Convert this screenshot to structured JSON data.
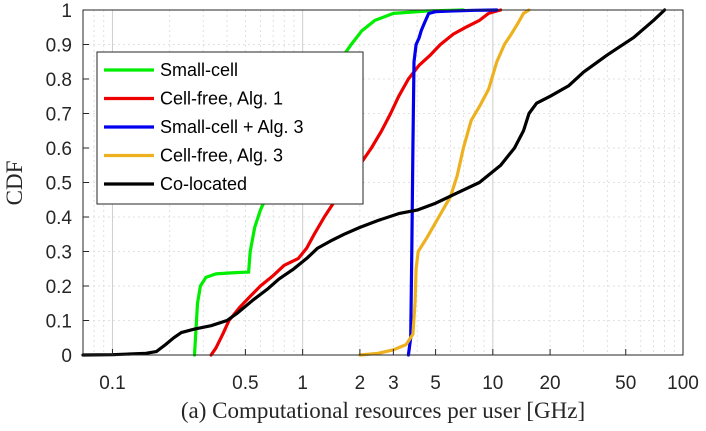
{
  "chart_data": {
    "type": "line",
    "xscale": "log",
    "xlim": [
      0.07,
      100
    ],
    "ylim": [
      0,
      1
    ],
    "grid": true,
    "xlabel": "(a) Computational resources per user [GHz]",
    "ylabel": "CDF",
    "xticks": [
      {
        "value": 0.1,
        "label": "0.1"
      },
      {
        "value": 0.5,
        "label": "0.5"
      },
      {
        "value": 1,
        "label": "1"
      },
      {
        "value": 2,
        "label": "2"
      },
      {
        "value": 3,
        "label": "3"
      },
      {
        "value": 5,
        "label": "5"
      },
      {
        "value": 10,
        "label": "10"
      },
      {
        "value": 20,
        "label": "20"
      },
      {
        "value": 50,
        "label": "50"
      },
      {
        "value": 100,
        "label": "100"
      }
    ],
    "yticks": [
      {
        "value": 0,
        "label": "0"
      },
      {
        "value": 0.1,
        "label": "0.1"
      },
      {
        "value": 0.2,
        "label": "0.2"
      },
      {
        "value": 0.3,
        "label": "0.3"
      },
      {
        "value": 0.4,
        "label": "0.4"
      },
      {
        "value": 0.5,
        "label": "0.5"
      },
      {
        "value": 0.6,
        "label": "0.6"
      },
      {
        "value": 0.7,
        "label": "0.7"
      },
      {
        "value": 0.8,
        "label": "0.8"
      },
      {
        "value": 0.9,
        "label": "0.9"
      },
      {
        "value": 1,
        "label": "1"
      }
    ],
    "legend_position": "left",
    "series": [
      {
        "name": "Small-cell",
        "color": "#00ee00",
        "points": [
          [
            0.27,
            0
          ],
          [
            0.28,
            0.15
          ],
          [
            0.29,
            0.2
          ],
          [
            0.31,
            0.225
          ],
          [
            0.35,
            0.235
          ],
          [
            0.42,
            0.238
          ],
          [
            0.5,
            0.24
          ],
          [
            0.52,
            0.24
          ],
          [
            0.53,
            0.3
          ],
          [
            0.56,
            0.37
          ],
          [
            0.6,
            0.42
          ],
          [
            0.66,
            0.47
          ],
          [
            0.75,
            0.52
          ],
          [
            0.85,
            0.57
          ],
          [
            0.95,
            0.62
          ],
          [
            1.05,
            0.66
          ],
          [
            1.15,
            0.7
          ],
          [
            1.25,
            0.74
          ],
          [
            1.35,
            0.78
          ],
          [
            1.45,
            0.82
          ],
          [
            1.6,
            0.86
          ],
          [
            1.8,
            0.9
          ],
          [
            2.05,
            0.94
          ],
          [
            2.4,
            0.97
          ],
          [
            3,
            0.99
          ],
          [
            4.5,
            0.997
          ],
          [
            7,
            1
          ]
        ]
      },
      {
        "name": "Cell-free, Alg. 1",
        "color": "#ee0000",
        "points": [
          [
            0.33,
            0
          ],
          [
            0.35,
            0.02
          ],
          [
            0.38,
            0.06
          ],
          [
            0.41,
            0.1
          ],
          [
            0.47,
            0.14
          ],
          [
            0.53,
            0.17
          ],
          [
            0.6,
            0.2
          ],
          [
            0.7,
            0.23
          ],
          [
            0.8,
            0.26
          ],
          [
            0.95,
            0.28
          ],
          [
            1.05,
            0.31
          ],
          [
            1.15,
            0.35
          ],
          [
            1.3,
            0.4
          ],
          [
            1.45,
            0.44
          ],
          [
            1.65,
            0.48
          ],
          [
            1.85,
            0.52
          ],
          [
            2.05,
            0.56
          ],
          [
            2.3,
            0.6
          ],
          [
            2.6,
            0.65
          ],
          [
            2.9,
            0.7
          ],
          [
            3.2,
            0.75
          ],
          [
            3.6,
            0.8
          ],
          [
            4.1,
            0.84
          ],
          [
            4.7,
            0.87
          ],
          [
            5.3,
            0.9
          ],
          [
            6.2,
            0.93
          ],
          [
            7.2,
            0.95
          ],
          [
            8.5,
            0.97
          ],
          [
            9.5,
            0.99
          ],
          [
            10.5,
            0.997
          ],
          [
            11,
            1
          ]
        ]
      },
      {
        "name": "Small-cell + Alg. 3",
        "color": "#0000ee",
        "points": [
          [
            3.6,
            0
          ],
          [
            3.7,
            0.05
          ],
          [
            3.75,
            0.3
          ],
          [
            3.8,
            0.6
          ],
          [
            3.85,
            0.85
          ],
          [
            3.95,
            0.9
          ],
          [
            4.1,
            0.92
          ],
          [
            4.2,
            0.94
          ],
          [
            4.35,
            0.96
          ],
          [
            4.6,
            0.99
          ],
          [
            5,
            0.995
          ],
          [
            6,
            0.997
          ],
          [
            8,
            0.999
          ],
          [
            10.5,
            1
          ]
        ]
      },
      {
        "name": "Cell-free, Alg. 3",
        "color": "#edb120",
        "points": [
          [
            2,
            0
          ],
          [
            2.5,
            0.005
          ],
          [
            3,
            0.015
          ],
          [
            3.5,
            0.03
          ],
          [
            3.8,
            0.06
          ],
          [
            3.9,
            0.15
          ],
          [
            3.95,
            0.25
          ],
          [
            4.05,
            0.3
          ],
          [
            4.5,
            0.34
          ],
          [
            5.2,
            0.4
          ],
          [
            6,
            0.46
          ],
          [
            6.5,
            0.52
          ],
          [
            7,
            0.6
          ],
          [
            7.7,
            0.68
          ],
          [
            8.5,
            0.72
          ],
          [
            9.5,
            0.77
          ],
          [
            10.5,
            0.85
          ],
          [
            11.5,
            0.9
          ],
          [
            12.5,
            0.93
          ],
          [
            13.5,
            0.96
          ],
          [
            14.5,
            0.99
          ],
          [
            15.5,
            1
          ]
        ]
      },
      {
        "name": "Co-located",
        "color": "#000000",
        "points": [
          [
            0.07,
            0
          ],
          [
            0.1,
            0.001
          ],
          [
            0.15,
            0.005
          ],
          [
            0.17,
            0.01
          ],
          [
            0.19,
            0.03
          ],
          [
            0.21,
            0.05
          ],
          [
            0.23,
            0.065
          ],
          [
            0.27,
            0.075
          ],
          [
            0.33,
            0.085
          ],
          [
            0.4,
            0.1
          ],
          [
            0.45,
            0.12
          ],
          [
            0.55,
            0.16
          ],
          [
            0.65,
            0.19
          ],
          [
            0.75,
            0.22
          ],
          [
            0.9,
            0.25
          ],
          [
            1.05,
            0.28
          ],
          [
            1.2,
            0.31
          ],
          [
            1.4,
            0.33
          ],
          [
            1.65,
            0.35
          ],
          [
            2,
            0.37
          ],
          [
            2.5,
            0.39
          ],
          [
            3.2,
            0.41
          ],
          [
            4,
            0.42
          ],
          [
            5,
            0.44
          ],
          [
            6.5,
            0.47
          ],
          [
            8.5,
            0.5
          ],
          [
            11,
            0.55
          ],
          [
            13,
            0.6
          ],
          [
            14.5,
            0.65
          ],
          [
            15.5,
            0.7
          ],
          [
            17,
            0.73
          ],
          [
            20,
            0.75
          ],
          [
            25,
            0.78
          ],
          [
            30,
            0.82
          ],
          [
            40,
            0.87
          ],
          [
            55,
            0.92
          ],
          [
            70,
            0.97
          ],
          [
            80,
            1
          ]
        ]
      }
    ]
  }
}
